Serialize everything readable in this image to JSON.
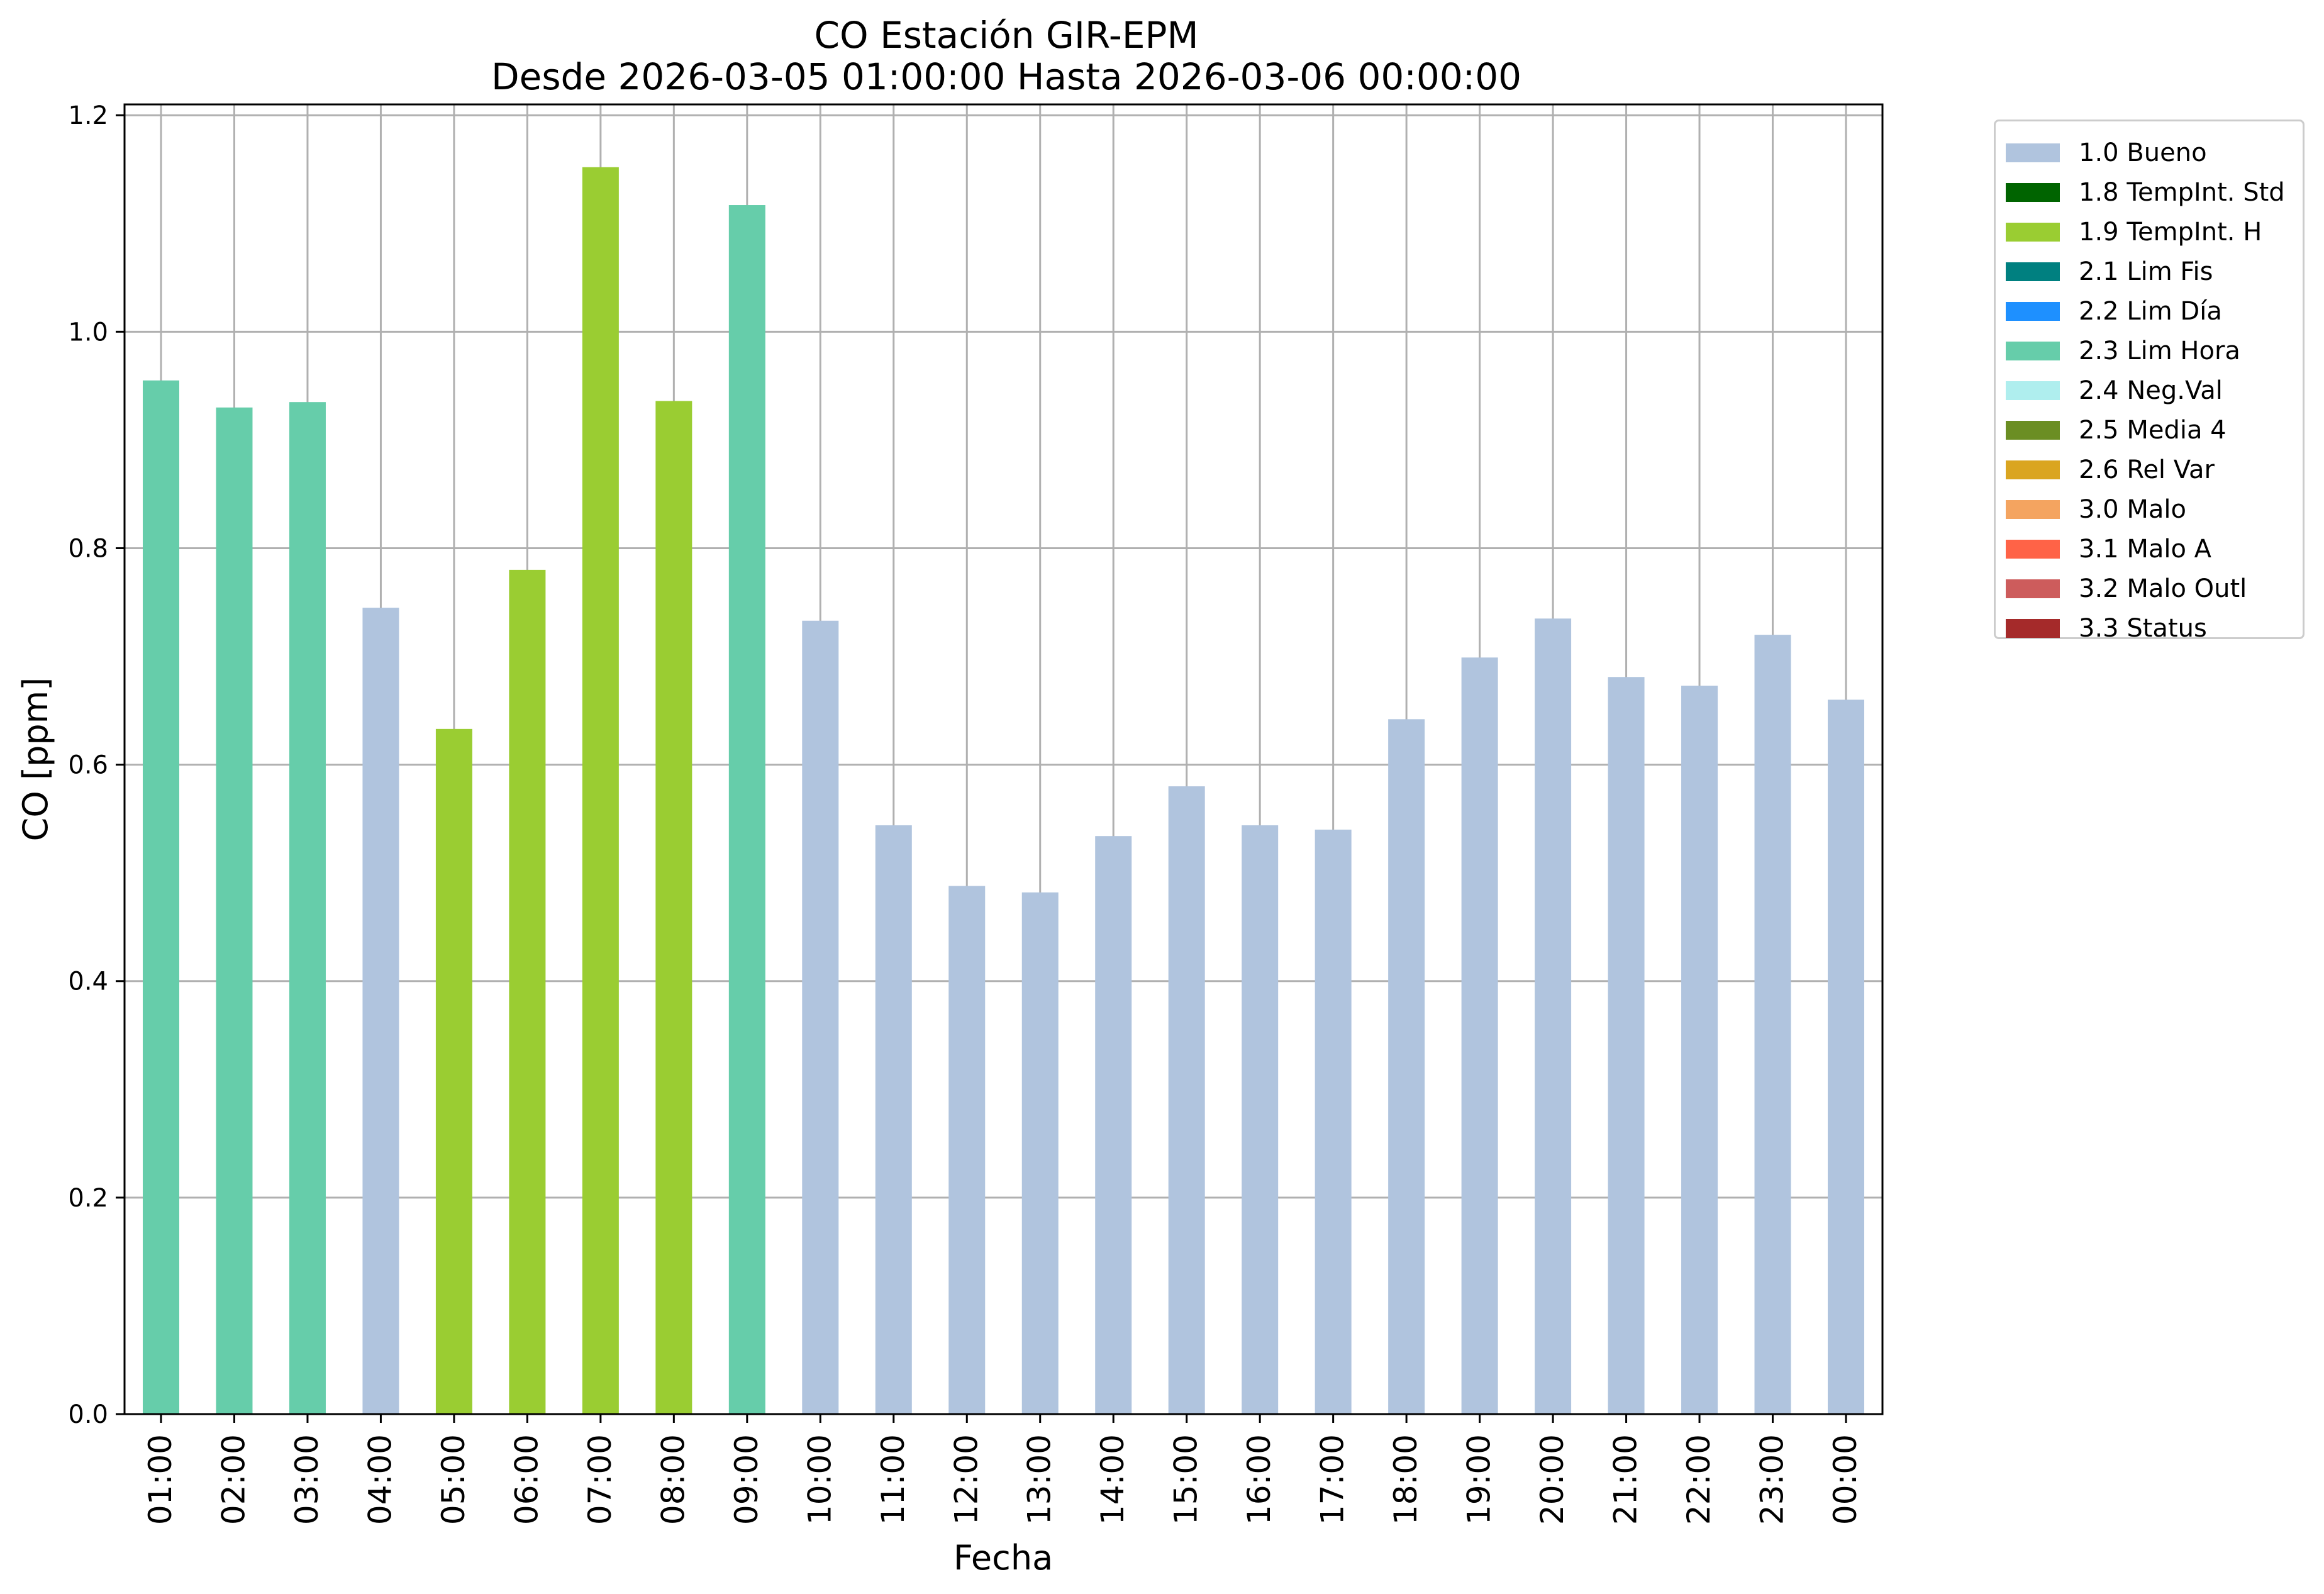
{
  "chart_data": {
    "type": "bar",
    "title": "CO Estación GIR-EPM",
    "subtitle": "Desde 2026-03-05 01:00:00 Hasta 2026-03-06 00:00:00",
    "xlabel": "Fecha",
    "ylabel": "CO [ppm]",
    "ylim": [
      0,
      1.21
    ],
    "yticks": [
      "0.0",
      "0.2",
      "0.4",
      "0.6",
      "0.8",
      "1.0",
      "1.2"
    ],
    "grid": true,
    "legend_position": "outside-top-right",
    "categories": [
      "01:00",
      "02:00",
      "03:00",
      "04:00",
      "05:00",
      "06:00",
      "07:00",
      "08:00",
      "09:00",
      "10:00",
      "11:00",
      "12:00",
      "13:00",
      "14:00",
      "15:00",
      "16:00",
      "17:00",
      "18:00",
      "19:00",
      "20:00",
      "21:00",
      "22:00",
      "23:00",
      "00:00"
    ],
    "values": [
      0.955,
      0.93,
      0.935,
      0.745,
      0.633,
      0.78,
      1.152,
      0.936,
      1.117,
      0.733,
      0.544,
      0.488,
      0.482,
      0.534,
      0.58,
      0.544,
      0.54,
      0.642,
      0.699,
      0.735,
      0.681,
      0.673,
      0.72,
      0.66
    ],
    "flags": [
      "2.3 Lim Hora",
      "2.3 Lim Hora",
      "2.3 Lim Hora",
      "1.0 Bueno",
      "1.9 TempInt. H",
      "1.9 TempInt. H",
      "1.9 TempInt. H",
      "1.9 TempInt. H",
      "2.3 Lim Hora",
      "1.0 Bueno",
      "1.0 Bueno",
      "1.0 Bueno",
      "1.0 Bueno",
      "1.0 Bueno",
      "1.0 Bueno",
      "1.0 Bueno",
      "1.0 Bueno",
      "1.0 Bueno",
      "1.0 Bueno",
      "1.0 Bueno",
      "1.0 Bueno",
      "1.0 Bueno",
      "1.0 Bueno",
      "1.0 Bueno"
    ],
    "legend": [
      {
        "label": "1.0 Bueno",
        "color": "#b0c4de"
      },
      {
        "label": "1.8 TempInt. Std",
        "color": "#006400"
      },
      {
        "label": "1.9 TempInt. H",
        "color": "#9acd32"
      },
      {
        "label": "2.1 Lim Fis",
        "color": "#008080"
      },
      {
        "label": "2.2 Lim Día",
        "color": "#1e90ff"
      },
      {
        "label": "2.3 Lim Hora",
        "color": "#66cdaa"
      },
      {
        "label": "2.4 Neg.Val",
        "color": "#afeeee"
      },
      {
        "label": "2.5 Media 4",
        "color": "#6b8e23"
      },
      {
        "label": "2.6 Rel Var",
        "color": "#daa520"
      },
      {
        "label": "3.0 Malo",
        "color": "#f4a460"
      },
      {
        "label": "3.1 Malo A",
        "color": "#ff6347"
      },
      {
        "label": "3.2 Malo Outl",
        "color": "#cd5c5c"
      },
      {
        "label": "3.3 Status",
        "color": "#a52a2a"
      }
    ]
  }
}
